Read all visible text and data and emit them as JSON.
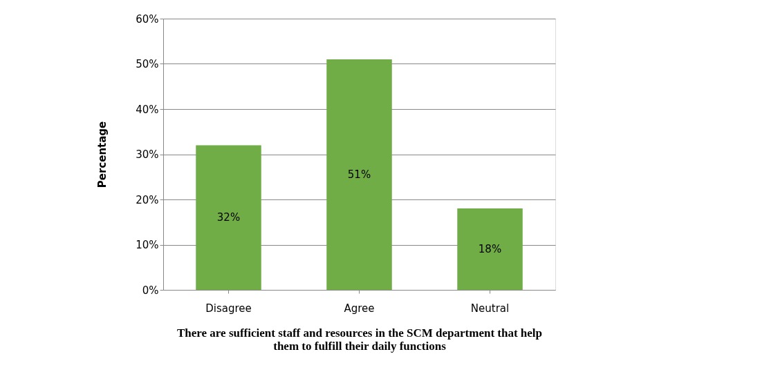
{
  "chart_data": {
    "type": "bar",
    "categories": [
      "Disagree",
      "Agree",
      "Neutral"
    ],
    "values": [
      32,
      51,
      18
    ],
    "value_labels": [
      "32%",
      "51%",
      "18%"
    ],
    "color": "#70ad47",
    "ylabel": "Percentage",
    "xlabel": "There are sufficient staff and resources in the SCM department that help them to fulfill their daily functions",
    "ylim": [
      0,
      60
    ],
    "yticks": [
      {
        "value": 0,
        "label": "0%"
      },
      {
        "value": 10,
        "label": "10%"
      },
      {
        "value": 20,
        "label": "20%"
      },
      {
        "value": 30,
        "label": "30%"
      },
      {
        "value": 40,
        "label": "40%"
      },
      {
        "value": 50,
        "label": "50%"
      },
      {
        "value": 60,
        "label": "60%"
      }
    ],
    "grid": "y"
  }
}
